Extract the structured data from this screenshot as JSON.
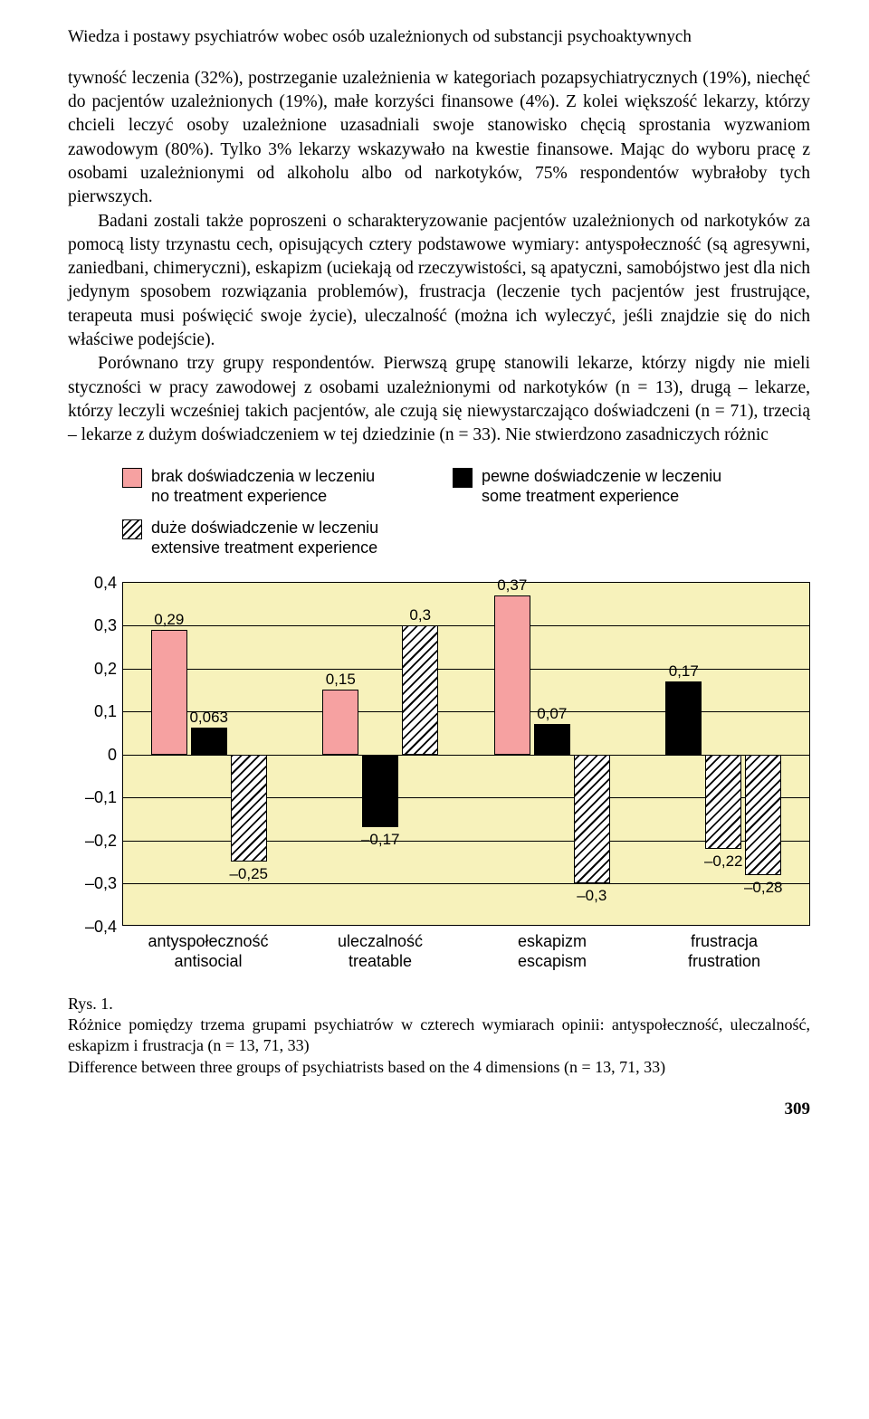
{
  "header": "Wiedza i postawy psychiatrów wobec osób uzależnionych od substancji psychoaktywnych",
  "paragraphs": {
    "p1": "tywność leczenia (32%), postrzeganie uzależnienia w kategoriach pozapsychiatrycznych (19%), niechęć do pacjentów uzależnionych (19%), małe korzyści finansowe (4%). Z kolei większość lekarzy, którzy chcieli leczyć osoby uzależnione uzasadniali swoje stanowisko chęcią sprostania wyzwaniom zawodowym (80%). Tylko 3% lekarzy wskazywało na kwestie finansowe. Mając do wyboru pracę z osobami uzależnionymi od alkoholu albo od narkotyków, 75% respondentów wybrałoby tych pierwszych.",
    "p2": "Badani zostali także poproszeni o scharakteryzowanie pacjentów uzależnionych od narkotyków za pomocą listy trzynastu cech, opisujących cztery podstawowe wymiary: antyspołeczność (są agresywni, zaniedbani, chimeryczni), eskapizm (uciekają od rzeczywistości, są apatyczni, samobójstwo jest dla nich jedynym sposobem rozwiązania problemów), frustracja (leczenie tych pacjentów jest frustrujące, terapeuta musi poświęcić swoje życie), uleczalność (można ich wyleczyć, jeśli znajdzie się do nich właściwe podejście).",
    "p3": "Porównano trzy grupy respondentów. Pierwszą grupę stanowili lekarze, którzy nigdy nie mieli styczności w pracy zawodowej z osobami uzależnionymi od narkotyków (n = 13), drugą – lekarze, którzy leczyli wcześniej takich pacjentów, ale czują się niewystarczająco doświadczeni (n = 71), trzecią – lekarze z dużym doświadczeniem w tej dziedzinie (n = 33). Nie stwierdzono zasadniczych różnic"
  },
  "legend": {
    "pink": {
      "pl": "brak doświadczenia w leczeniu",
      "en": "no treatment experience"
    },
    "black": {
      "pl": "pewne doświadczenie w leczeniu",
      "en": "some treatment experience"
    },
    "hatch": {
      "pl": "duże doświadczenie w leczeniu",
      "en": "extensive treatment experience"
    }
  },
  "chart": {
    "type": "bar",
    "background_color": "#f7f2bb",
    "grid_color": "#000000",
    "bar_colors": {
      "pink": "#f6a1a1",
      "black": "#000000",
      "hatch_bg": "#ffffff",
      "hatch_line": "#000000"
    },
    "ylim": [
      -0.4,
      0.4
    ],
    "ytick_step": 0.1,
    "yticks": [
      "0,4",
      "0,3",
      "0,2",
      "0,1",
      "0",
      "–0,1",
      "–0,2",
      "–0,3",
      "–0,4"
    ],
    "categories": [
      {
        "pl": "antyspołeczność",
        "en": "antisocial"
      },
      {
        "pl": "uleczalność",
        "en": "treatable"
      },
      {
        "pl": "eskapizm",
        "en": "escapism"
      },
      {
        "pl": "frustracja",
        "en": "frustration"
      }
    ],
    "series": {
      "pink": {
        "values": [
          0.29,
          0.15,
          0.37,
          null
        ],
        "labels": [
          "0,29",
          "0,15",
          "0,37",
          null
        ]
      },
      "black": {
        "values": [
          0.063,
          -0.17,
          0.07,
          0.17
        ],
        "labels": [
          "0,063",
          "–0,17",
          "0,07",
          "0,17"
        ]
      },
      "hatch": {
        "values": [
          -0.25,
          0.3,
          -0.3,
          -0.22
        ],
        "labels": [
          "–0,25",
          "0,3",
          "–0,3",
          "–0,22"
        ]
      },
      "hatch2": {
        "values": [
          null,
          null,
          null,
          -0.28
        ],
        "labels": [
          null,
          null,
          null,
          "–0,28"
        ]
      }
    },
    "bar_width": 0.23,
    "label_fontsize": 17
  },
  "caption": {
    "fig_label": "Rys. 1.",
    "pl": "Różnice pomiędzy trzema grupami psychiatrów w czterech wymiarach opinii: antyspołeczność, uleczalność, eskapizm i frustracja (n = 13, 71, 33)",
    "en": "Difference between three groups of psychiatrists based on the 4 dimensions (n = 13, 71, 33)"
  },
  "page_number": "309"
}
